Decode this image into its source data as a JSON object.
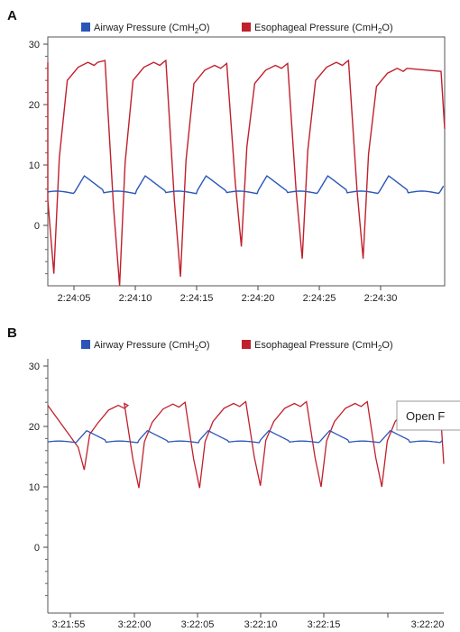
{
  "chart_data": [
    {
      "panel": "A",
      "type": "line",
      "legend": "top",
      "grid": false,
      "series": [
        {
          "name": "Airway Pressure (CmH2O)",
          "color": "#2a56b8"
        },
        {
          "name": "Esophageal Pressure (CmH2O)",
          "color": "#c0202c"
        }
      ],
      "x_ticks": [
        "2:24:05",
        "2:24:10",
        "2:24:15",
        "2:24:20",
        "2:24:25",
        "2:24:30"
      ],
      "xlim_seconds": [
        -1.3,
        31.3
      ],
      "ylim": [
        -10,
        31
      ],
      "y_ticks": [
        0,
        10,
        20,
        30
      ],
      "airway": {
        "baseline": 5.5,
        "peak": 8.2,
        "period_s": 5.0,
        "phase_s": 0.9
      },
      "esophageal_cycles": [
        {
          "min_t": -0.8,
          "min": -8,
          "plateau": 27
        },
        {
          "min_t": 4.6,
          "min": -10,
          "plateau": 27
        },
        {
          "min_t": 9.6,
          "min": -8.5,
          "plateau": 26.5
        },
        {
          "min_t": 14.6,
          "min": -3.5,
          "plateau": 26.5
        },
        {
          "min_t": 19.6,
          "min": -5.5,
          "plateau": 27
        },
        {
          "min_t": 24.6,
          "min": -5.5,
          "plateau": 26
        }
      ]
    },
    {
      "panel": "B",
      "type": "line",
      "legend": "top",
      "grid": false,
      "series": [
        {
          "name": "Airway Pressure (CmH2O)",
          "color": "#2a56b8"
        },
        {
          "name": "Esophageal Pressure (CmH2O)",
          "color": "#c0202c"
        }
      ],
      "x_ticks": [
        "3:21:55",
        "3:22:00",
        "3:22:05",
        "3:22:10",
        "3:22:15",
        "3:22:20"
      ],
      "xlim_seconds": [
        -1.8,
        30.8
      ],
      "ylim": [
        -10,
        31
      ],
      "y_ticks": [
        0,
        10,
        20,
        30
      ],
      "airway": {
        "baseline": 17.5,
        "peak": 19.3,
        "period_s": 5.0
      },
      "esophageal_cycles": [
        {
          "min_t": 1.2,
          "min": 12.8,
          "plateau": 23.5
        },
        {
          "min_t": 5.7,
          "min": 9.8,
          "plateau": 23.7
        },
        {
          "min_t": 10.7,
          "min": 9.8,
          "plateau": 23.8
        },
        {
          "min_t": 15.7,
          "min": 10.2,
          "plateau": 23.8
        },
        {
          "min_t": 20.7,
          "min": 10,
          "plateau": 23.8
        },
        {
          "min_t": 25.7,
          "min": 10,
          "plateau": 23.8
        }
      ]
    }
  ],
  "panels": {
    "a": {
      "letter": "A",
      "legend_airway": "Airway Pressure (CmH",
      "legend_esoph": "Esophageal Pressure (CmH",
      "sub": "2",
      "suffix": "O)",
      "y_tick_labels": [
        "30",
        "20",
        "10",
        "0"
      ],
      "x_tick_labels": [
        "2:24:05",
        "2:24:10",
        "2:24:15",
        "2:24:20",
        "2:24:25",
        "2:24:30"
      ]
    },
    "b": {
      "letter": "B",
      "legend_airway": "Airway Pressure (CmH",
      "legend_esoph": "Esophageal Pressure (CmH",
      "sub": "2",
      "suffix": "O)",
      "y_tick_labels": [
        "30",
        "20",
        "10",
        "0"
      ],
      "x_tick_labels": [
        "3:21:55",
        "3:22:00",
        "3:22:05",
        "3:22:10",
        "3:22:15",
        "3:22:20"
      ]
    }
  },
  "popup": {
    "label": "Open F"
  }
}
